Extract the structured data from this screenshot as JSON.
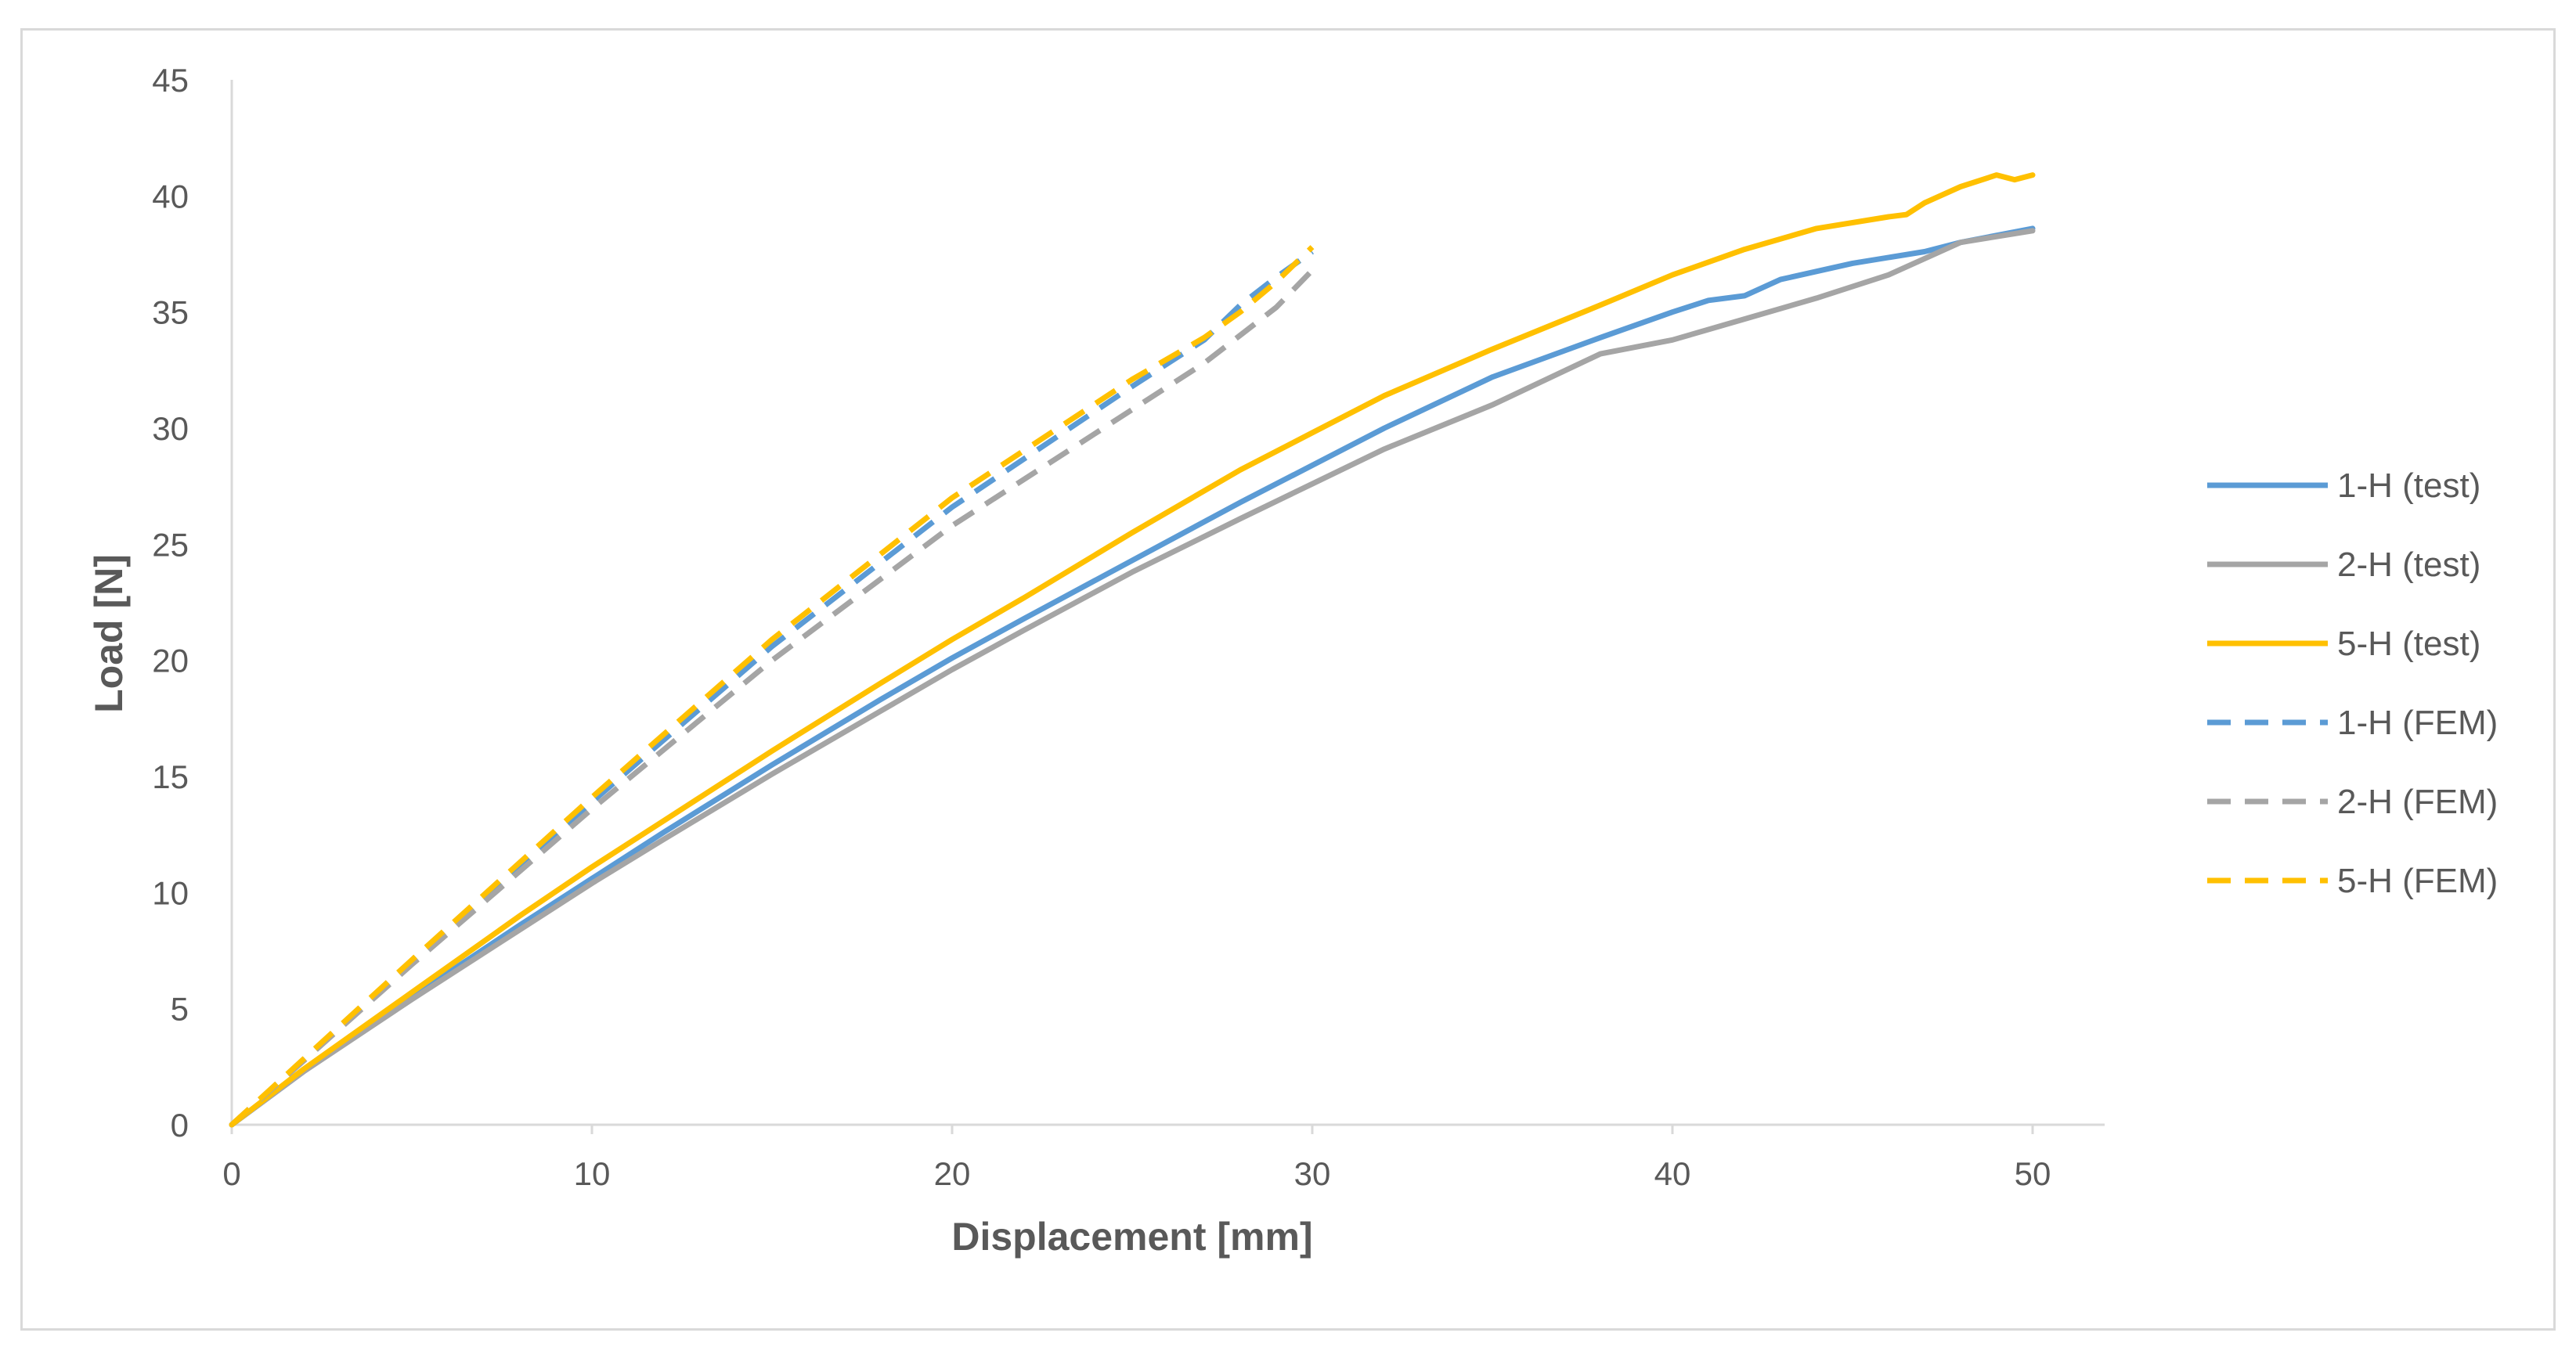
{
  "chart_data": {
    "type": "line",
    "title": "",
    "xlabel": "Displacement [mm]",
    "ylabel": "Load [N]",
    "xlim": [
      0,
      52
    ],
    "ylim": [
      0,
      45
    ],
    "x_ticks": [
      0,
      10,
      20,
      30,
      40,
      50
    ],
    "y_ticks": [
      0,
      5,
      10,
      15,
      20,
      25,
      30,
      35,
      40,
      45
    ],
    "x_tick_labels": [
      "0",
      "10",
      "20",
      "30",
      "40",
      "50"
    ],
    "y_tick_labels": [
      "0",
      "5",
      "10",
      "15",
      "20",
      "25",
      "30",
      "35",
      "40",
      "45"
    ],
    "grid": false,
    "legend_position": "right",
    "series": [
      {
        "name": "1-H (test)",
        "color": "#5b9bd5",
        "style": "solid",
        "x": [
          0,
          2,
          5,
          8,
          10,
          12,
          15,
          18,
          20,
          22,
          25,
          28,
          30,
          32,
          35,
          38,
          40,
          41,
          42,
          43,
          45,
          47,
          48,
          50
        ],
        "y": [
          0,
          2.3,
          5.5,
          8.6,
          10.6,
          12.6,
          15.5,
          18.3,
          20.1,
          21.8,
          24.3,
          26.8,
          28.4,
          30.0,
          32.2,
          33.9,
          35.0,
          35.5,
          35.7,
          36.4,
          37.1,
          37.6,
          38.0,
          38.6
        ]
      },
      {
        "name": "2-H (test)",
        "color": "#a5a5a5",
        "style": "solid",
        "x": [
          0,
          2,
          5,
          8,
          10,
          12,
          15,
          18,
          20,
          22,
          25,
          28,
          30,
          32,
          35,
          38,
          40,
          42,
          44,
          46,
          47,
          48,
          50
        ],
        "y": [
          0,
          2.3,
          5.4,
          8.4,
          10.4,
          12.3,
          15.1,
          17.8,
          19.6,
          21.3,
          23.8,
          26.1,
          27.6,
          29.1,
          31.0,
          33.2,
          33.8,
          34.7,
          35.6,
          36.6,
          37.3,
          38.0,
          38.5
        ]
      },
      {
        "name": "5-H (test)",
        "color": "#ffc000",
        "style": "solid",
        "x": [
          0,
          2,
          5,
          8,
          10,
          12,
          15,
          18,
          20,
          22,
          25,
          28,
          30,
          32,
          35,
          38,
          40,
          42,
          44,
          46,
          46.5,
          47,
          48,
          49,
          49.5,
          50
        ],
        "y": [
          0,
          2.4,
          5.7,
          9.0,
          11.1,
          13.1,
          16.1,
          19.0,
          20.9,
          22.7,
          25.5,
          28.2,
          29.8,
          31.4,
          33.4,
          35.3,
          36.6,
          37.7,
          38.6,
          39.1,
          39.2,
          39.7,
          40.4,
          40.9,
          40.7,
          40.9
        ]
      },
      {
        "name": "1-H (FEM)",
        "color": "#5b9bd5",
        "style": "dashed",
        "x": [
          0,
          5,
          10,
          15,
          20,
          25,
          26,
          27,
          28,
          29,
          30
        ],
        "y": [
          0,
          7.0,
          13.9,
          20.6,
          26.6,
          31.8,
          32.8,
          33.8,
          35.3,
          36.5,
          37.6
        ]
      },
      {
        "name": "2-H (FEM)",
        "color": "#a5a5a5",
        "style": "dashed",
        "x": [
          0,
          5,
          10,
          15,
          20,
          25,
          27,
          28,
          29,
          30
        ],
        "y": [
          0,
          6.9,
          13.6,
          20.0,
          25.8,
          30.8,
          32.8,
          34.0,
          35.2,
          36.8
        ]
      },
      {
        "name": "5-H (FEM)",
        "color": "#ffc000",
        "style": "dashed",
        "x": [
          0,
          5,
          10,
          15,
          20,
          25,
          27,
          28,
          29,
          30
        ],
        "y": [
          0,
          7.1,
          14.1,
          20.9,
          27.0,
          32.1,
          33.9,
          35.0,
          36.3,
          37.8
        ]
      }
    ]
  },
  "axis_color": "#d9d9d9",
  "frame_border_color": "#d9d9d9",
  "text_color": "#595959"
}
